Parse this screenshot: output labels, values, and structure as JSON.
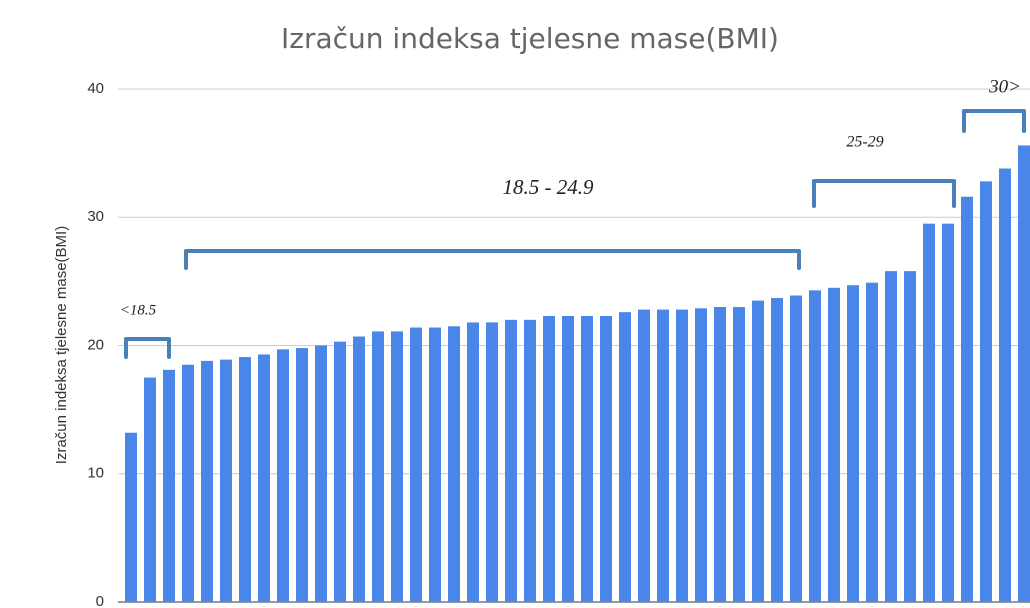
{
  "chart_data": {
    "type": "bar",
    "title": "Izračun indeksa tjelesne mase(BMI)",
    "y_label": "Izračun indeksa tjelesne mase(BMI)",
    "categories": [
      null,
      null,
      null,
      null,
      null,
      null,
      null,
      null,
      null,
      null,
      null,
      null,
      null,
      null,
      null,
      null,
      null,
      null,
      null,
      null,
      null,
      null,
      null,
      null,
      null,
      null,
      null,
      null,
      null,
      null,
      null,
      null,
      null,
      null,
      null,
      null,
      null,
      null,
      null,
      null,
      null,
      null,
      null,
      null,
      null,
      null,
      null,
      null
    ],
    "values": [
      13.2,
      17.5,
      18.1,
      18.5,
      18.8,
      18.9,
      19.1,
      19.3,
      19.7,
      19.8,
      20.0,
      20.3,
      20.7,
      21.1,
      21.1,
      21.4,
      21.4,
      21.5,
      21.8,
      21.8,
      22.0,
      22.0,
      22.3,
      22.3,
      22.3,
      22.3,
      22.6,
      22.8,
      22.8,
      22.8,
      22.9,
      23.0,
      23.0,
      23.5,
      23.7,
      23.9,
      24.3,
      24.5,
      24.7,
      24.9,
      25.8,
      25.8,
      29.5,
      29.5,
      31.6,
      32.8,
      33.8,
      35.6
    ],
    "color": "#4a86e8",
    "ylim": [
      0,
      40
    ],
    "yticks": [
      0,
      10,
      20,
      30,
      40
    ],
    "grid": true,
    "annotations": [
      "<18.5",
      "18.5 - 24.9",
      "25-29",
      "30>"
    ]
  }
}
